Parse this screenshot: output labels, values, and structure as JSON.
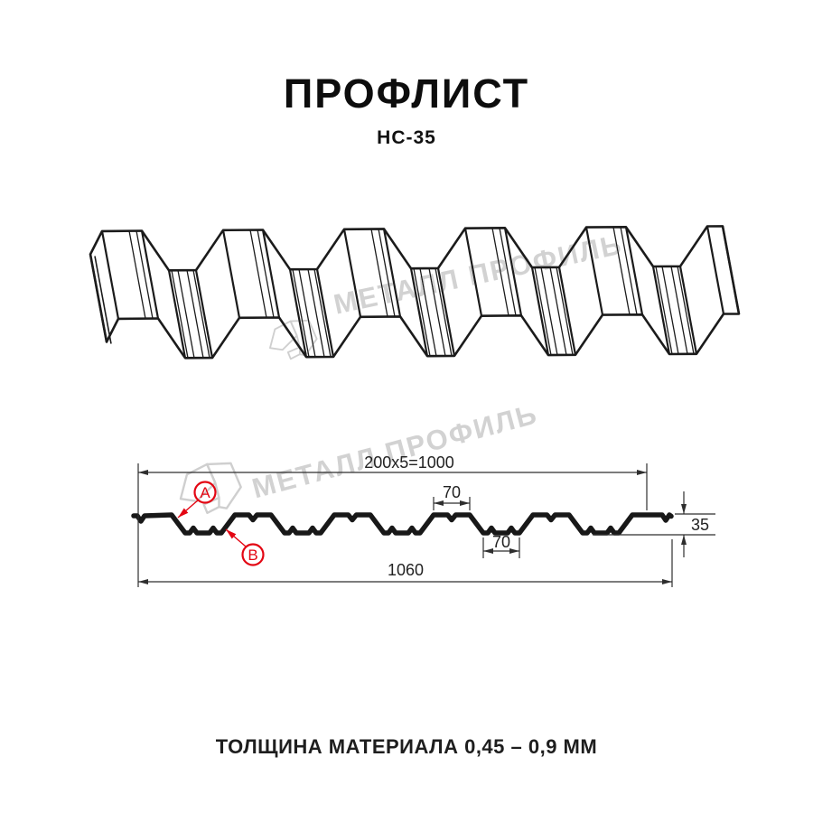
{
  "page": {
    "background": "#ffffff"
  },
  "header": {
    "title": "ПРОФЛИСТ",
    "subtitle": "НС-35"
  },
  "watermark": {
    "text": "МЕТАЛЛ ПРОФИЛЬ",
    "color": "#d2d2d2"
  },
  "drawing3d": {
    "line_color": "#1b1b1b"
  },
  "diagram": {
    "line_color": "#181818",
    "dim_color": "#2e2e2e",
    "accent_color": "#e30613",
    "dim_top": "200x5=1000",
    "dim_crest_width": "70",
    "dim_valley_width": "70",
    "dim_height": "35",
    "dim_overall": "1060",
    "marker_a": "A",
    "marker_b": "B"
  },
  "footer": {
    "note": "ТОЛЩИНА МАТЕРИАЛА 0,45 – 0,9 ММ"
  }
}
